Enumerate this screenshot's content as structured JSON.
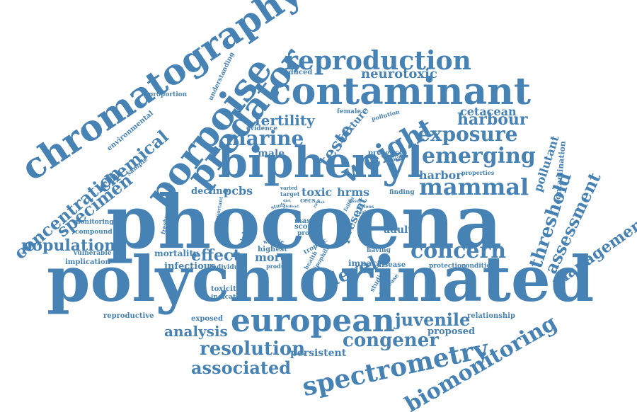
{
  "word_color": "#4682b4",
  "words": [
    "phocoena",
    "polychlorinated",
    "biphenyl",
    "contaminant",
    "chromatography",
    "porpoise",
    "predator",
    "reproduction",
    "european",
    "spectrometry",
    "biomonitoring",
    "concern",
    "mammal",
    "emerging",
    "exposure",
    "weight",
    "marine",
    "concentration",
    "chemical",
    "specimen",
    "population",
    "effect",
    "threshold",
    "assessment",
    "management",
    "resolution",
    "congener",
    "associated",
    "analysis",
    "juvenile",
    "level",
    "fertility",
    "teste",
    "harbour",
    "harbor",
    "cetacean",
    "neurotoxic",
    "pcbs",
    "toxic",
    "hrms",
    "decline",
    "male",
    "mixture",
    "pollutant",
    "contamination",
    "present",
    "adult",
    "infectious",
    "mortality",
    "persistent",
    "proposed",
    "relationship",
    "reproductive",
    "exposed",
    "toxicity",
    "indicator",
    "more",
    "highest",
    "impact",
    "disease",
    "protection",
    "condition",
    "individual",
    "product",
    "trophic",
    "health",
    "lipophilic",
    "studies",
    "increase",
    "having",
    "blubber",
    "mas",
    "scope",
    "profile",
    "cecs",
    "finding",
    "implication",
    "vulnerable",
    "compound",
    "monitoring",
    "freshwater",
    "important",
    "study",
    "target",
    "varied",
    "wildlife",
    "presence",
    "animal",
    "female",
    "pollution",
    "evidence",
    "environmental",
    "sample",
    "proportion",
    "understanding",
    "reduced",
    "properties",
    "fallen",
    "serious",
    "higher",
    "tissue",
    "rate",
    "diet",
    "lead",
    "gfof",
    "risk"
  ]
}
